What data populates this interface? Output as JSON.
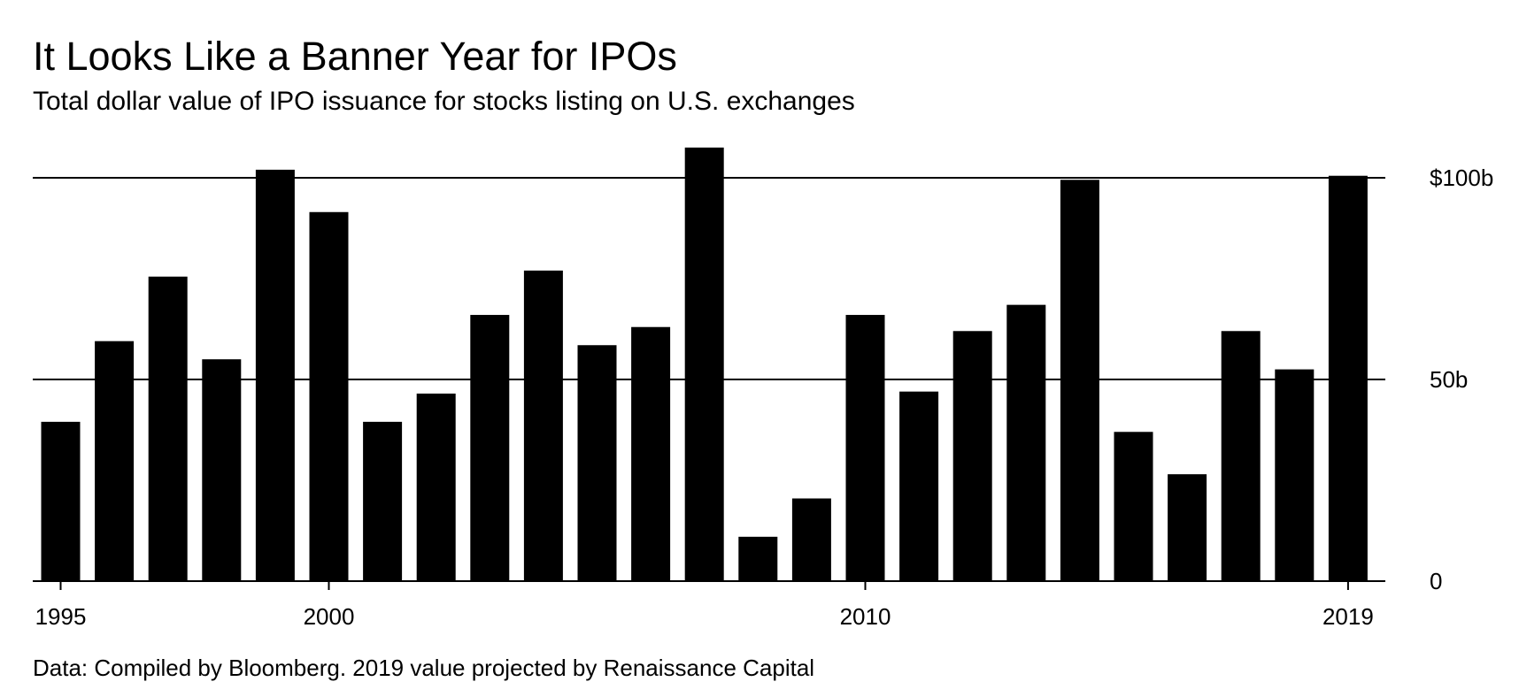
{
  "chart_data": {
    "type": "bar",
    "title": "It Looks Like a Banner Year for IPOs",
    "subtitle": "Total dollar value of IPO issuance for stocks listing on U.S. exchanges",
    "source": "Data: Compiled by Bloomberg. 2019 value projected by Renaissance Capital",
    "xlabel": "",
    "ylabel": "",
    "categories": [
      "1995",
      "1996",
      "1997",
      "1998",
      "1999",
      "2000",
      "2001",
      "2002",
      "2003",
      "2004",
      "2005",
      "2006",
      "2007",
      "2008",
      "2009",
      "2010",
      "2011",
      "2012",
      "2013",
      "2014",
      "2015",
      "2016",
      "2017",
      "2018",
      "2019"
    ],
    "values": [
      39.5,
      59.5,
      75.5,
      55,
      102,
      91.5,
      39.5,
      46.5,
      66,
      77,
      58.5,
      63,
      107.5,
      11,
      20.5,
      66,
      47,
      62,
      68.5,
      99.5,
      37,
      26.5,
      62,
      52.5,
      100.5
    ],
    "ylim": [
      0,
      110
    ],
    "y_ticks": [
      {
        "value": 0,
        "label": "0"
      },
      {
        "value": 50,
        "label": "50b"
      },
      {
        "value": 100,
        "label": "$100b"
      }
    ],
    "x_ticks": [
      "1995",
      "2000",
      "2010",
      "2019"
    ],
    "gridlines": [
      50,
      100
    ],
    "bar_color": "#000000",
    "grid_color": "#000000"
  }
}
